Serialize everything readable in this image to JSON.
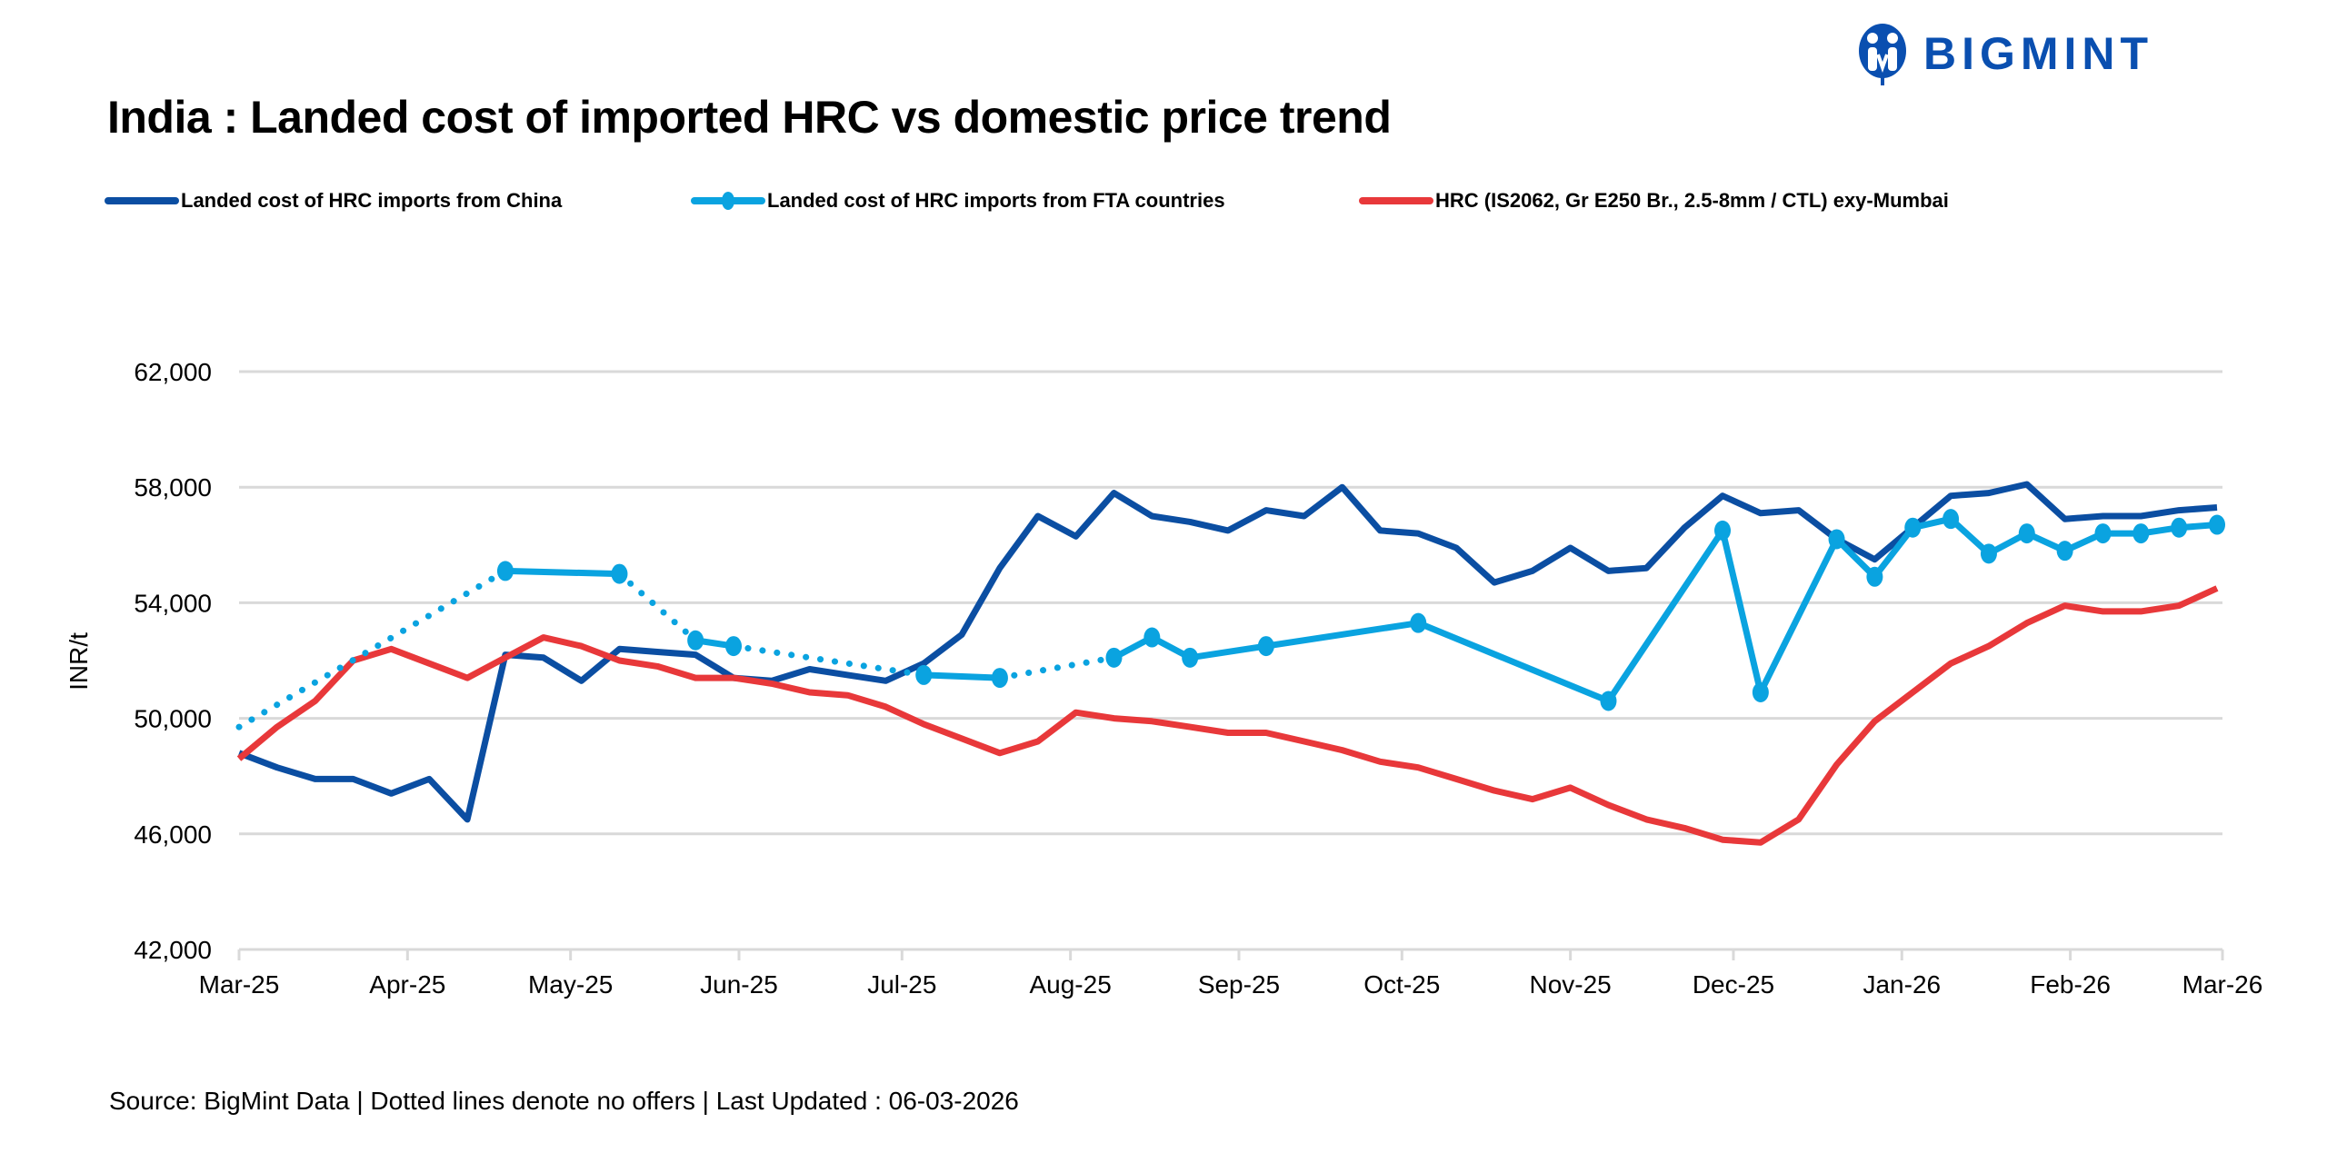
{
  "logo": {
    "text": "BIGMINT",
    "color": "#0a4fb0"
  },
  "source": "Source: BigMint Data | Dotted lines denote no offers | Last Updated : 06-03-2026",
  "chart_data": {
    "type": "line",
    "title": "India : Landed cost of imported HRC vs domestic price trend",
    "ylabel": "INR/t",
    "xlabel": "",
    "ylim": [
      42000,
      62000
    ],
    "yticks": [
      "42,000",
      "46,000",
      "50,000",
      "54,000",
      "58,000",
      "62,000"
    ],
    "ytick_values": [
      42000,
      46000,
      50000,
      54000,
      58000,
      62000
    ],
    "xticks": [
      "Mar-25",
      "Apr-25",
      "May-25",
      "Jun-25",
      "Jul-25",
      "Aug-25",
      "Sep-25",
      "Oct-25",
      "Nov-25",
      "Dec-25",
      "Jan-26",
      "Feb-26",
      "Mar-26"
    ],
    "xtick_dates": [
      "2025-03-01",
      "2025-04-01",
      "2025-05-01",
      "2025-06-01",
      "2025-07-01",
      "2025-08-01",
      "2025-09-01",
      "2025-10-01",
      "2025-11-01",
      "2025-12-01",
      "2026-01-01",
      "2026-02-01",
      "2026-03-01"
    ],
    "grid": true,
    "legend_position": "top",
    "x": [
      "2025-03-01",
      "2025-03-08",
      "2025-03-15",
      "2025-03-22",
      "2025-03-29",
      "2025-04-05",
      "2025-04-12",
      "2025-04-19",
      "2025-04-26",
      "2025-05-03",
      "2025-05-10",
      "2025-05-17",
      "2025-05-24",
      "2025-05-31",
      "2025-06-07",
      "2025-06-14",
      "2025-06-21",
      "2025-06-28",
      "2025-07-05",
      "2025-07-12",
      "2025-07-19",
      "2025-07-26",
      "2025-08-02",
      "2025-08-09",
      "2025-08-16",
      "2025-08-23",
      "2025-08-30",
      "2025-09-06",
      "2025-09-13",
      "2025-09-20",
      "2025-09-27",
      "2025-10-04",
      "2025-10-11",
      "2025-10-18",
      "2025-10-25",
      "2025-11-01",
      "2025-11-08",
      "2025-11-15",
      "2025-11-22",
      "2025-11-29",
      "2025-12-06",
      "2025-12-13",
      "2025-12-20",
      "2025-12-27",
      "2026-01-03",
      "2026-01-10",
      "2026-01-17",
      "2026-01-24",
      "2026-01-31",
      "2026-02-07",
      "2026-02-14",
      "2026-02-21",
      "2026-02-28"
    ],
    "series": [
      {
        "name": "Landed cost of HRC imports from China",
        "color": "#0b4ea2",
        "values": [
          48800,
          48300,
          47900,
          47900,
          47400,
          47900,
          46500,
          52200,
          52100,
          51300,
          52400,
          52300,
          52200,
          51400,
          51300,
          51700,
          51500,
          51300,
          51900,
          52900,
          55200,
          57000,
          56300,
          57800,
          57000,
          56800,
          56500,
          57200,
          57000,
          58000,
          56500,
          56400,
          55900,
          54700,
          55100,
          55900,
          55100,
          55200,
          56600,
          57700,
          57100,
          57200,
          56200,
          55500,
          56600,
          57700,
          57800,
          58100,
          56900,
          57000,
          57000,
          57200,
          57300
        ]
      },
      {
        "name": "Landed cost of HRC imports from FTA countries",
        "color": "#0aa3e0",
        "markers": true,
        "points": [
          {
            "x": "2025-03-01",
            "y": 49700,
            "marker": false,
            "line_to_next": "dotted"
          },
          {
            "x": "2025-04-19",
            "y": 55100,
            "marker": true,
            "line_to_next": "solid"
          },
          {
            "x": "2025-05-10",
            "y": 55000,
            "marker": true,
            "line_to_next": "dotted"
          },
          {
            "x": "2025-05-24",
            "y": 52700,
            "marker": true,
            "line_to_next": "solid"
          },
          {
            "x": "2025-05-31",
            "y": 52500,
            "marker": true,
            "line_to_next": "dotted"
          },
          {
            "x": "2025-07-05",
            "y": 51500,
            "marker": true,
            "line_to_next": "solid"
          },
          {
            "x": "2025-07-19",
            "y": 51400,
            "marker": true,
            "line_to_next": "dotted"
          },
          {
            "x": "2025-08-09",
            "y": 52100,
            "marker": true,
            "line_to_next": "solid"
          },
          {
            "x": "2025-08-16",
            "y": 52800,
            "marker": true,
            "line_to_next": "solid"
          },
          {
            "x": "2025-08-23",
            "y": 52100,
            "marker": true,
            "line_to_next": "solid"
          },
          {
            "x": "2025-09-06",
            "y": 52500,
            "marker": true,
            "line_to_next": "solid"
          },
          {
            "x": "2025-10-04",
            "y": 53300,
            "marker": true,
            "line_to_next": "solid"
          },
          {
            "x": "2025-11-08",
            "y": 50600,
            "marker": true,
            "line_to_next": "solid"
          },
          {
            "x": "2025-11-29",
            "y": 56500,
            "marker": true,
            "line_to_next": "solid"
          },
          {
            "x": "2025-12-06",
            "y": 50900,
            "marker": true,
            "line_to_next": "solid"
          },
          {
            "x": "2025-12-20",
            "y": 56200,
            "marker": true,
            "line_to_next": "solid"
          },
          {
            "x": "2025-12-27",
            "y": 54900,
            "marker": true,
            "line_to_next": "solid"
          },
          {
            "x": "2026-01-03",
            "y": 56600,
            "marker": true,
            "line_to_next": "solid"
          },
          {
            "x": "2026-01-10",
            "y": 56900,
            "marker": true,
            "line_to_next": "solid"
          },
          {
            "x": "2026-01-17",
            "y": 55700,
            "marker": true,
            "line_to_next": "solid"
          },
          {
            "x": "2026-01-24",
            "y": 56400,
            "marker": true,
            "line_to_next": "solid"
          },
          {
            "x": "2026-01-31",
            "y": 55800,
            "marker": true,
            "line_to_next": "solid"
          },
          {
            "x": "2026-02-07",
            "y": 56400,
            "marker": true,
            "line_to_next": "solid"
          },
          {
            "x": "2026-02-14",
            "y": 56400,
            "marker": true,
            "line_to_next": "solid"
          },
          {
            "x": "2026-02-21",
            "y": 56600,
            "marker": true,
            "line_to_next": "solid"
          },
          {
            "x": "2026-02-28",
            "y": 56700,
            "marker": true,
            "line_to_next": null
          }
        ]
      },
      {
        "name": "HRC (IS2062, Gr E250 Br., 2.5-8mm / CTL) exy-Mumbai",
        "color": "#e8383a",
        "values": [
          48600,
          49700,
          50600,
          52000,
          52400,
          51900,
          51400,
          52100,
          52800,
          52500,
          52000,
          51800,
          51400,
          51400,
          51200,
          50900,
          50800,
          50400,
          49800,
          49300,
          48800,
          49200,
          50200,
          50000,
          49900,
          49700,
          49500,
          49500,
          49200,
          48900,
          48500,
          48300,
          47900,
          47500,
          47200,
          47600,
          47000,
          46500,
          46200,
          45800,
          45700,
          46500,
          48400,
          49900,
          50900,
          51900,
          52500,
          53300,
          53900,
          53700,
          53700,
          53900,
          54500
        ]
      }
    ]
  }
}
